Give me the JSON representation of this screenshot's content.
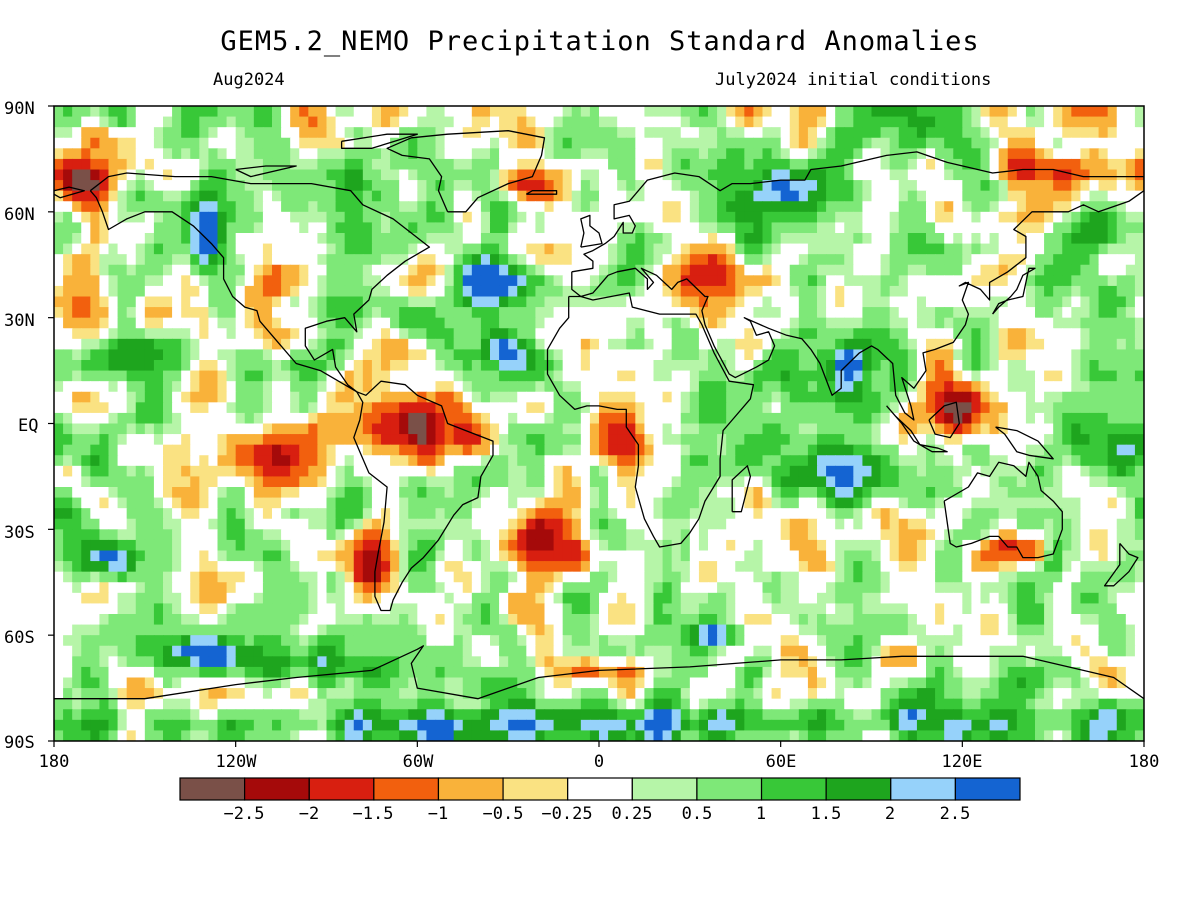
{
  "title": "GEM5.2_NEMO Precipitation Standard Anomalies",
  "subtitle_left": "Aug2024",
  "subtitle_right": "July2024 initial conditions",
  "lat_labels": [
    "90N",
    "60N",
    "30N",
    "EQ",
    "30S",
    "60S",
    "90S"
  ],
  "lon_labels": [
    "180",
    "120W",
    "60W",
    "0",
    "60E",
    "120E",
    "180"
  ],
  "colorbar": {
    "colors": [
      "#7a5048",
      "#a50a0a",
      "#d81f10",
      "#f2600e",
      "#f9b23a",
      "#fae282",
      "#ffffff",
      "#b6f5a8",
      "#7ee878",
      "#38c838",
      "#1ea51e",
      "#96d2fa",
      "#1464d2"
    ],
    "labels": [
      "−2.5",
      "−2",
      "−1.5",
      "−1",
      "−0.5",
      "−0.25",
      "0.25",
      "0.5",
      "1",
      "1.5",
      "2",
      "2.5"
    ]
  },
  "map_colors": {
    "ocean_base": "#7ee878",
    "coast": "#000000"
  }
}
